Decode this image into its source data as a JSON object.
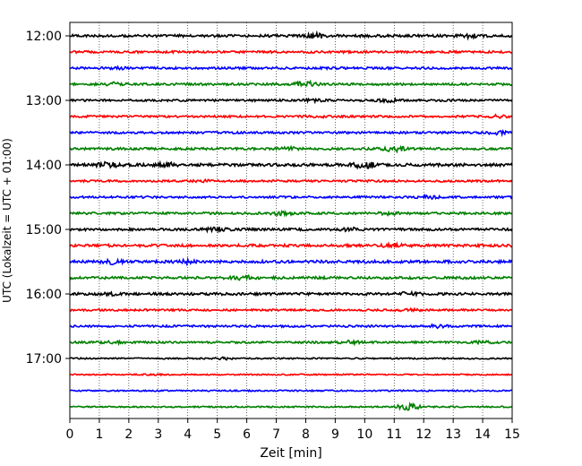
{
  "chart_data": {
    "type": "line",
    "title": "",
    "xlabel": "Zeit  [min]",
    "ylabel": "UTC (Lokalzeit = UTC + 01:00)",
    "xlim": [
      0,
      15
    ],
    "x_ticks": [
      "0",
      "1",
      "2",
      "3",
      "4",
      "5",
      "6",
      "7",
      "8",
      "9",
      "10",
      "11",
      "12",
      "13",
      "14",
      "15"
    ],
    "y_ticks": [
      "12:00",
      "13:00",
      "14:00",
      "15:00",
      "16:00",
      "17:00"
    ],
    "grid": "vertical dotted",
    "colors": [
      "#000000",
      "#ff0000",
      "#0000ff",
      "#008000"
    ],
    "traces": [
      {
        "start": "12:00",
        "color": "#000000",
        "amplitude": 0.35,
        "bursts": [
          [
            8.3,
            1.2
          ],
          [
            13.5,
            0.9
          ]
        ]
      },
      {
        "start": "12:15",
        "color": "#ff0000",
        "amplitude": 0.3,
        "bursts": []
      },
      {
        "start": "12:30",
        "color": "#0000ff",
        "amplitude": 0.3,
        "bursts": [
          [
            1.5,
            0.8
          ]
        ]
      },
      {
        "start": "12:45",
        "color": "#008000",
        "amplitude": 0.3,
        "bursts": [
          [
            1.5,
            0.9
          ],
          [
            8.0,
            1.4
          ]
        ]
      },
      {
        "start": "13:00",
        "color": "#000000",
        "amplitude": 0.28,
        "bursts": [
          [
            8.3,
            0.8
          ],
          [
            10.8,
            0.9
          ]
        ]
      },
      {
        "start": "13:15",
        "color": "#ff0000",
        "amplitude": 0.28,
        "bursts": [
          [
            8.3,
            0.8
          ],
          [
            14.5,
            0.8
          ]
        ]
      },
      {
        "start": "13:30",
        "color": "#0000ff",
        "amplitude": 0.3,
        "bursts": [
          [
            14.5,
            0.9
          ]
        ]
      },
      {
        "start": "13:45",
        "color": "#008000",
        "amplitude": 0.32,
        "bursts": [
          [
            7.5,
            0.8
          ],
          [
            11.0,
            1.3
          ]
        ]
      },
      {
        "start": "14:00",
        "color": "#000000",
        "amplitude": 0.38,
        "bursts": [
          [
            1.3,
            1.0
          ],
          [
            3.3,
            0.9
          ],
          [
            10.0,
            1.5
          ]
        ]
      },
      {
        "start": "14:15",
        "color": "#ff0000",
        "amplitude": 0.28,
        "bursts": [
          [
            4.5,
            0.7
          ]
        ]
      },
      {
        "start": "14:30",
        "color": "#0000ff",
        "amplitude": 0.28,
        "bursts": [
          [
            12.2,
            1.0
          ]
        ]
      },
      {
        "start": "14:45",
        "color": "#008000",
        "amplitude": 0.3,
        "bursts": [
          [
            7.2,
            1.0
          ],
          [
            10.8,
            0.8
          ]
        ]
      },
      {
        "start": "15:00",
        "color": "#000000",
        "amplitude": 0.32,
        "bursts": [
          [
            5.0,
            1.1
          ],
          [
            9.5,
            0.8
          ]
        ]
      },
      {
        "start": "15:15",
        "color": "#ff0000",
        "amplitude": 0.36,
        "bursts": [
          [
            11.0,
            0.9
          ]
        ]
      },
      {
        "start": "15:30",
        "color": "#0000ff",
        "amplitude": 0.38,
        "bursts": [
          [
            1.5,
            1.0
          ],
          [
            4.0,
            0.8
          ]
        ]
      },
      {
        "start": "15:45",
        "color": "#008000",
        "amplitude": 0.34,
        "bursts": [
          [
            5.8,
            1.3
          ]
        ]
      },
      {
        "start": "16:00",
        "color": "#000000",
        "amplitude": 0.34,
        "bursts": [
          [
            1.5,
            0.8
          ],
          [
            11.5,
            0.8
          ]
        ]
      },
      {
        "start": "16:15",
        "color": "#ff0000",
        "amplitude": 0.26,
        "bursts": [
          [
            11.5,
            0.8
          ]
        ]
      },
      {
        "start": "16:30",
        "color": "#0000ff",
        "amplitude": 0.28,
        "bursts": [
          [
            12.5,
            0.9
          ]
        ]
      },
      {
        "start": "16:45",
        "color": "#008000",
        "amplitude": 0.28,
        "bursts": [
          [
            1.5,
            0.8
          ],
          [
            9.5,
            0.9
          ],
          [
            14.0,
            0.8
          ]
        ]
      },
      {
        "start": "17:00",
        "color": "#000000",
        "amplitude": 0.2,
        "bursts": [
          [
            5.3,
            0.9
          ]
        ]
      },
      {
        "start": "17:15",
        "color": "#ff0000",
        "amplitude": 0.18,
        "bursts": [
          [
            2.8,
            0.6
          ]
        ]
      },
      {
        "start": "17:30",
        "color": "#0000ff",
        "amplitude": 0.2,
        "bursts": []
      },
      {
        "start": "17:45",
        "color": "#008000",
        "amplitude": 0.2,
        "bursts": [
          [
            11.5,
            3.0
          ]
        ]
      }
    ]
  }
}
